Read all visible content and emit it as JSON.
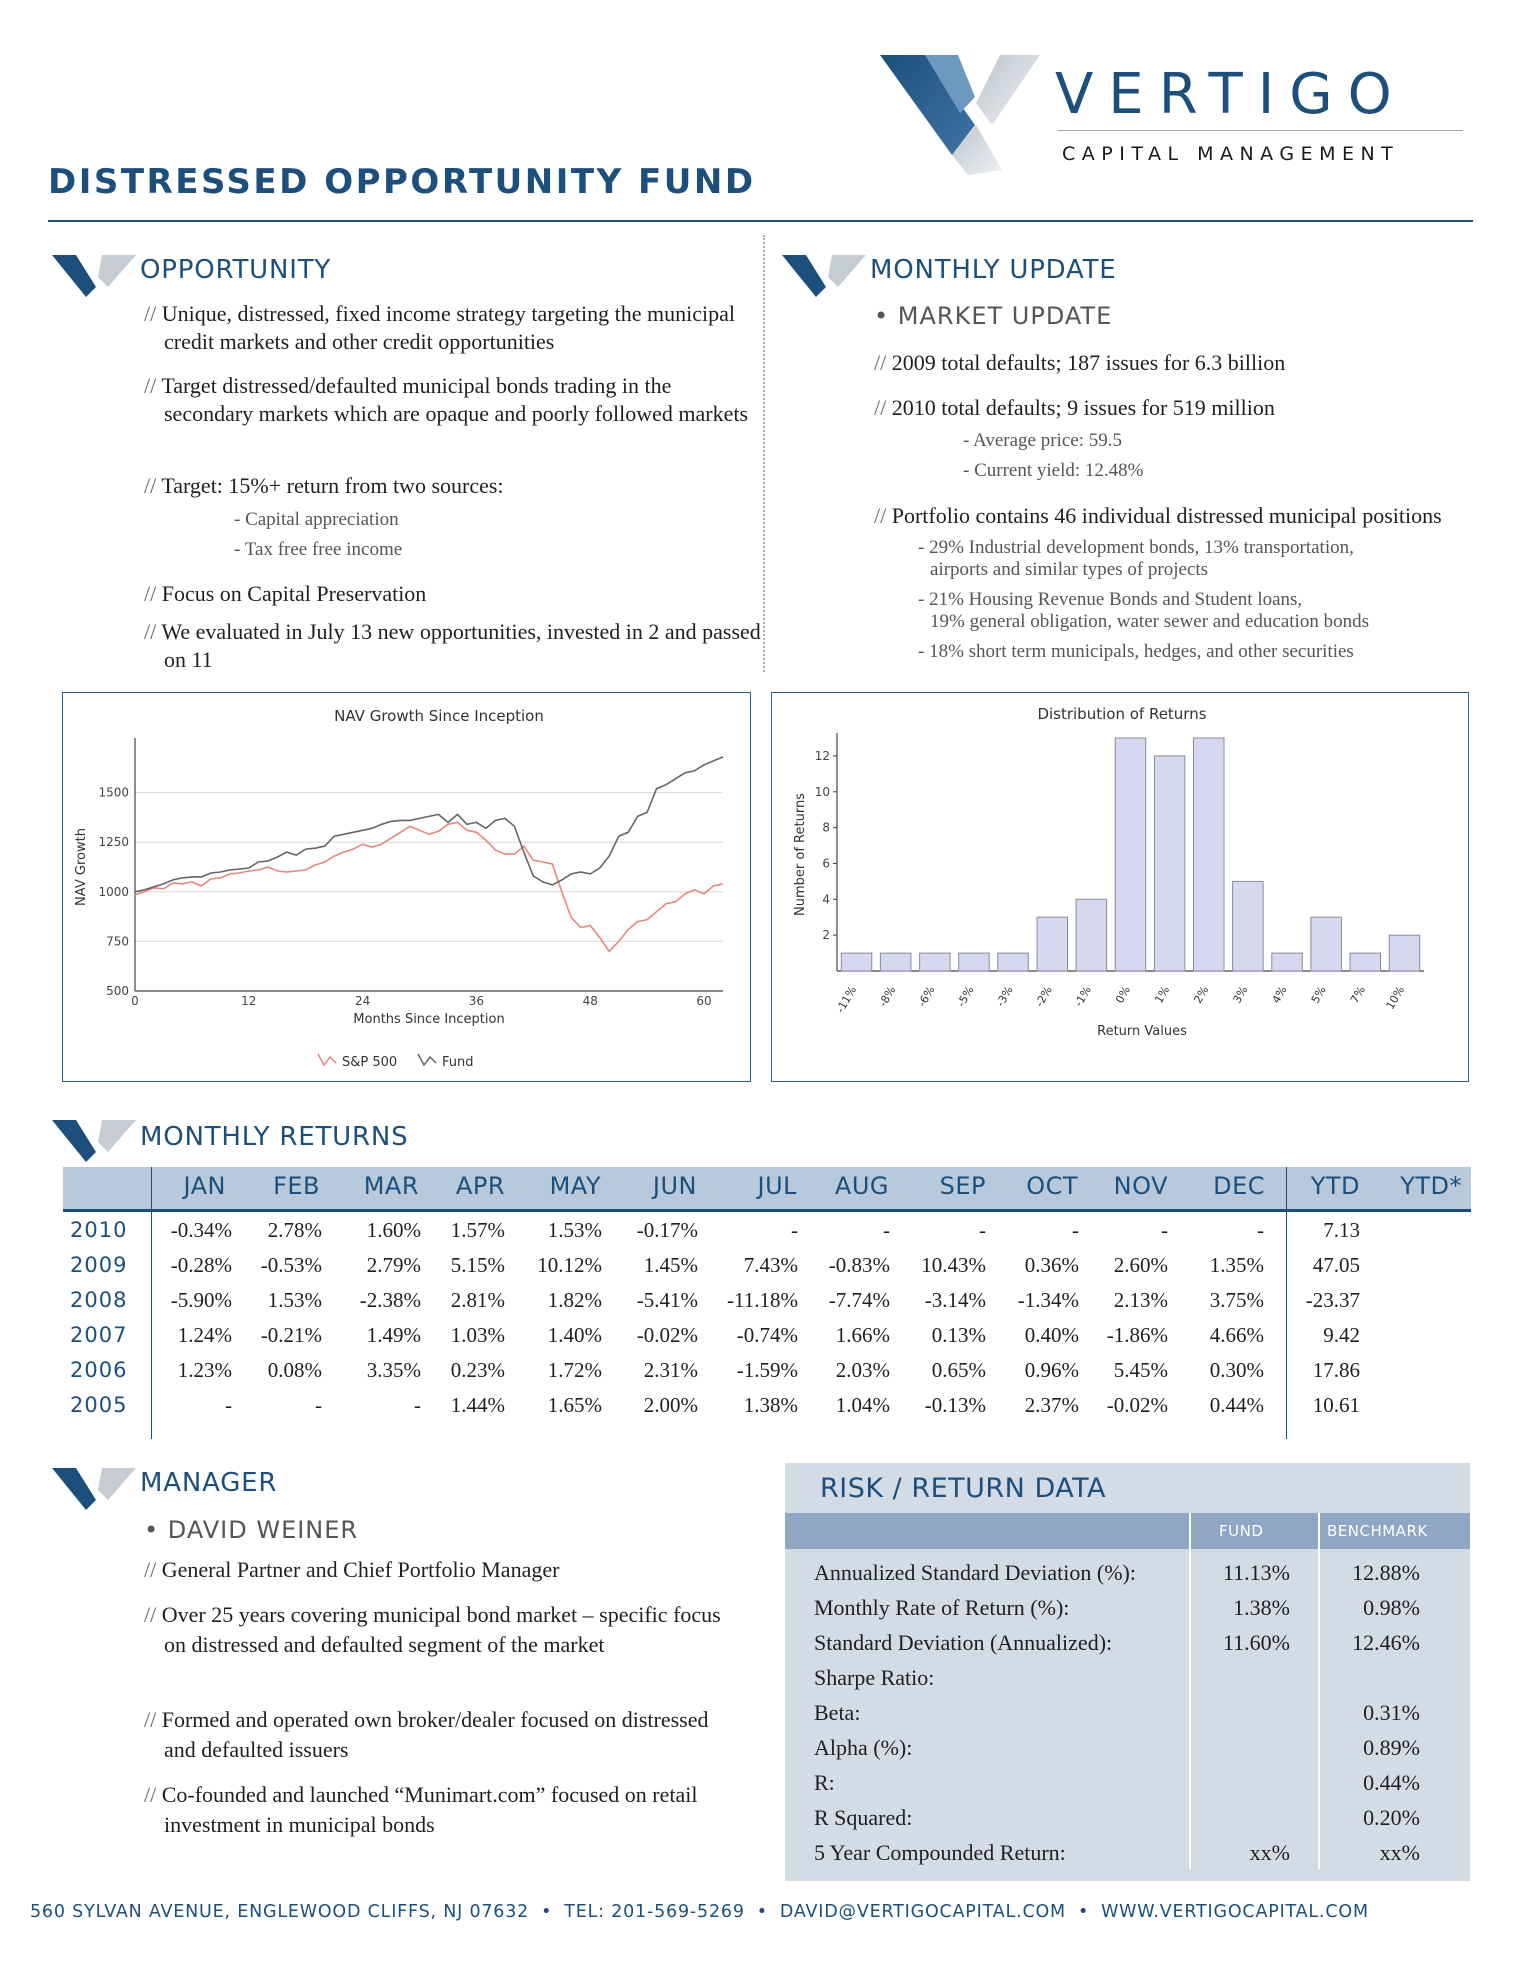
{
  "brand": {
    "name": "VERTIGO",
    "sub": "CAPITAL MANAGEMENT"
  },
  "fund_title": "DISTRESSED OPPORTUNITY FUND",
  "opportunity": {
    "title": "OPPORTUNITY",
    "items": [
      "Unique, distressed, fixed income strategy targeting the municipal credit markets and other credit opportunities",
      "Target distressed/defaulted municipal bonds trading in the secondary markets which are opaque and poorly followed markets",
      "Target: 15%+ return  from two sources:",
      "Focus on Capital Preservation",
      "We evaluated in July 13 new opportunities, invested in 2 and passed on 11"
    ],
    "sub_items": [
      "- Capital appreciation",
      "- Tax free free income"
    ]
  },
  "monthly_update": {
    "title": "MONTHLY UPDATE",
    "subtitle": "• MARKET UPDATE",
    "items": [
      "2009 total defaults; 187 issues for 6.3 billion",
      "2010 total defaults; 9 issues for 519 million",
      "Portfolio contains 46 individual distressed municipal positions"
    ],
    "sub_2010": [
      "- Average price: 59.5",
      "- Current yield: 12.48%"
    ],
    "portfolio_lines": [
      "- 29% Industrial development bonds, 13% transportation,",
      "airports and similar types of projects",
      "- 21% Housing Revenue Bonds and Student loans,",
      "19% general obligation, water sewer and education bonds",
      "- 18% short term municipals, hedges, and other securities"
    ]
  },
  "chart_data": [
    {
      "type": "line",
      "title": "NAV Growth Since Inception",
      "xlabel": "Months Since Inception",
      "ylabel": "NAV Growth",
      "xlim": [
        0,
        62
      ],
      "ylim": [
        500,
        1750
      ],
      "xticks": [
        0,
        12,
        24,
        36,
        48,
        60
      ],
      "yticks": [
        500,
        750,
        1000,
        1250,
        1500
      ],
      "grid": true,
      "legend": "bottom",
      "series": [
        {
          "name": "S&P 500",
          "color": "#e8877b",
          "x": [
            0,
            1,
            2,
            3,
            4,
            5,
            6,
            7,
            8,
            9,
            10,
            11,
            12,
            13,
            14,
            15,
            16,
            17,
            18,
            19,
            20,
            21,
            22,
            23,
            24,
            25,
            26,
            27,
            28,
            29,
            30,
            31,
            32,
            33,
            34,
            35,
            36,
            37,
            38,
            39,
            40,
            41,
            42,
            43,
            44,
            45,
            46,
            47,
            48,
            49,
            50,
            51,
            52,
            53,
            54,
            55,
            56,
            57,
            58,
            59,
            60,
            61,
            62
          ],
          "values": [
            985,
            1000,
            1020,
            1015,
            1045,
            1040,
            1050,
            1030,
            1065,
            1070,
            1090,
            1095,
            1105,
            1110,
            1125,
            1105,
            1100,
            1105,
            1110,
            1135,
            1150,
            1180,
            1200,
            1215,
            1240,
            1225,
            1240,
            1270,
            1300,
            1330,
            1310,
            1290,
            1305,
            1340,
            1350,
            1310,
            1300,
            1260,
            1210,
            1190,
            1190,
            1230,
            1160,
            1150,
            1140,
            1000,
            870,
            820,
            830,
            770,
            700,
            750,
            810,
            850,
            860,
            900,
            940,
            950,
            990,
            1010,
            990,
            1030,
            1040
          ]
        },
        {
          "name": "Fund",
          "color": "#666666",
          "x": [
            0,
            1,
            2,
            3,
            4,
            5,
            6,
            7,
            8,
            9,
            10,
            11,
            12,
            13,
            14,
            15,
            16,
            17,
            18,
            19,
            20,
            21,
            22,
            23,
            24,
            25,
            26,
            27,
            28,
            29,
            30,
            31,
            32,
            33,
            34,
            35,
            36,
            37,
            38,
            39,
            40,
            41,
            42,
            43,
            44,
            45,
            46,
            47,
            48,
            49,
            50,
            51,
            52,
            53,
            54,
            55,
            56,
            57,
            58,
            59,
            60,
            61,
            62
          ],
          "values": [
            1000,
            1010,
            1025,
            1040,
            1060,
            1070,
            1075,
            1075,
            1095,
            1100,
            1110,
            1115,
            1120,
            1150,
            1155,
            1175,
            1200,
            1185,
            1215,
            1220,
            1230,
            1280,
            1290,
            1300,
            1310,
            1320,
            1340,
            1355,
            1360,
            1360,
            1370,
            1380,
            1390,
            1350,
            1390,
            1340,
            1350,
            1320,
            1360,
            1370,
            1330,
            1200,
            1080,
            1050,
            1035,
            1060,
            1090,
            1100,
            1090,
            1120,
            1180,
            1280,
            1300,
            1380,
            1400,
            1520,
            1540,
            1570,
            1600,
            1610,
            1640,
            1660,
            1680
          ]
        }
      ]
    },
    {
      "type": "bar",
      "title": "Distribution of Returns",
      "xlabel": "Return Values",
      "ylabel": "Number of Returns",
      "ylim": [
        0,
        13
      ],
      "yticks": [
        2,
        4,
        6,
        8,
        10,
        12
      ],
      "categories": [
        "-11%",
        "-8%",
        "-6%",
        "-5%",
        "-3%",
        "-2%",
        "-1%",
        "0%",
        "1%",
        "2%",
        "3%",
        "4%",
        "5%",
        "7%",
        "10%"
      ],
      "values": [
        1,
        1,
        1,
        1,
        1,
        3,
        4,
        13,
        12,
        13,
        5,
        1,
        3,
        1,
        2
      ],
      "bar_color": "#d6d8ef"
    }
  ],
  "monthly_returns": {
    "title": "MONTHLY RETURNS",
    "columns": [
      "JAN",
      "FEB",
      "MAR",
      "APR",
      "MAY",
      "JUN",
      "JUL",
      "AUG",
      "SEP",
      "OCT",
      "NOV",
      "DEC",
      "YTD",
      "YTD*"
    ],
    "rows": [
      {
        "year": "2010",
        "cells": [
          "-0.34%",
          "2.78%",
          "1.60%",
          "1.57%",
          "1.53%",
          "-0.17%",
          "-",
          "-",
          "-",
          "-",
          "-",
          "-",
          "7.13"
        ]
      },
      {
        "year": "2009",
        "cells": [
          "-0.28%",
          "-0.53%",
          "2.79%",
          "5.15%",
          "10.12%",
          "1.45%",
          "7.43%",
          "-0.83%",
          "10.43%",
          "0.36%",
          "2.60%",
          "1.35%",
          "47.05"
        ]
      },
      {
        "year": "2008",
        "cells": [
          "-5.90%",
          "1.53%",
          "-2.38%",
          "2.81%",
          "1.82%",
          "-5.41%",
          "-11.18%",
          "-7.74%",
          "-3.14%",
          "-1.34%",
          "2.13%",
          "3.75%",
          "-23.37"
        ]
      },
      {
        "year": "2007",
        "cells": [
          "1.24%",
          "-0.21%",
          "1.49%",
          "1.03%",
          "1.40%",
          "-0.02%",
          "-0.74%",
          "1.66%",
          "0.13%",
          "0.40%",
          "-1.86%",
          "4.66%",
          "9.42"
        ]
      },
      {
        "year": "2006",
        "cells": [
          "1.23%",
          "0.08%",
          "3.35%",
          "0.23%",
          "1.72%",
          "2.31%",
          "-1.59%",
          "2.03%",
          "0.65%",
          "0.96%",
          "5.45%",
          "0.30%",
          "17.86"
        ]
      },
      {
        "year": "2005",
        "cells": [
          "-",
          "-",
          "-",
          "1.44%",
          "1.65%",
          "2.00%",
          "1.38%",
          "1.04%",
          "-0.13%",
          "2.37%",
          "-0.02%",
          "0.44%",
          "10.61"
        ]
      }
    ]
  },
  "manager": {
    "title": "MANAGER",
    "subtitle": "• DAVID WEINER",
    "items": [
      "General Partner and Chief Portfolio Manager",
      "Over 25 years covering municipal bond market – specific focus on distressed and defaulted segment of the market",
      "Formed and operated own broker/dealer focused on distressed and defaulted issuers",
      "Co-founded and launched “Munimart.com” focused on retail investment in municipal bonds"
    ]
  },
  "risk": {
    "title": "RISK / RETURN DATA",
    "col_fund": "FUND",
    "col_benchmark": "BENCHMARK",
    "rows": [
      {
        "label": "Annualized Standard Deviation (%):",
        "fund": "11.13%",
        "benchmark": "12.88%"
      },
      {
        "label": "Monthly Rate of Return (%):",
        "fund": "1.38%",
        "benchmark": "0.98%"
      },
      {
        "label": "Standard Deviation (Annualized):",
        "fund": "11.60%",
        "benchmark": "12.46%"
      },
      {
        "label": "Sharpe Ratio:",
        "fund": "",
        "benchmark": ""
      },
      {
        "label": "Beta:",
        "fund": "",
        "benchmark": "0.31%"
      },
      {
        "label": "Alpha (%):",
        "fund": "",
        "benchmark": "0.89%"
      },
      {
        "label": "R:",
        "fund": "",
        "benchmark": "0.44%"
      },
      {
        "label": "R Squared:",
        "fund": "",
        "benchmark": "0.20%"
      },
      {
        "label": "5 Year Compounded Return:",
        "fund": "xx%",
        "benchmark": "xx%"
      }
    ]
  },
  "footer": {
    "address": "560 SYLVAN AVENUE, ENGLEWOOD CLIFFS, NJ 07632",
    "tel": "TEL: 201-569-5269",
    "email": "DAVID@VERTIGOCAPITAL.COM",
    "web": "WWW.VERTIGOCAPITAL.COM"
  },
  "colors": {
    "navy": "#1d4f7c",
    "light_blue": "#b7c9db",
    "panel": "#d3dbe7",
    "sp500": "#e8877b",
    "fund": "#666666",
    "bars": "#d6d8ef"
  },
  "icons": [
    "vertigo-logo-mark",
    "section-v-mark"
  ]
}
